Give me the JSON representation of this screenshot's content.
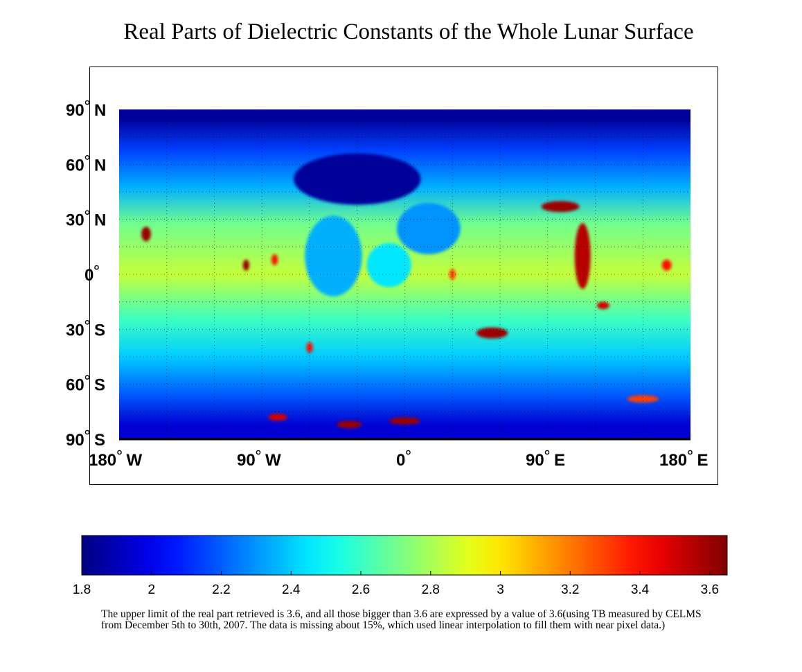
{
  "chart_data": {
    "type": "heatmap",
    "title": "Real Parts of Dielectric Constants of the Whole Lunar Surface",
    "x_ticks": [
      {
        "value": -180,
        "label": "180",
        "hemi": "W"
      },
      {
        "value": -90,
        "label": "90",
        "hemi": "W"
      },
      {
        "value": 0,
        "label": "0",
        "hemi": ""
      },
      {
        "value": 90,
        "label": "90",
        "hemi": "E"
      },
      {
        "value": 180,
        "label": "180",
        "hemi": "E"
      }
    ],
    "y_ticks": [
      {
        "value": 90,
        "label": "90",
        "hemi": "N"
      },
      {
        "value": 60,
        "label": "60",
        "hemi": "N"
      },
      {
        "value": 30,
        "label": "30",
        "hemi": "N"
      },
      {
        "value": 0,
        "label": "0",
        "hemi": ""
      },
      {
        "value": -30,
        "label": "30",
        "hemi": "S"
      },
      {
        "value": -60,
        "label": "60",
        "hemi": "S"
      },
      {
        "value": -90,
        "label": "90",
        "hemi": "S"
      }
    ],
    "xlim": [
      -180,
      180
    ],
    "ylim": [
      -90,
      90
    ],
    "grid": true,
    "colorbar": {
      "colormap": "jet",
      "range": [
        1.8,
        3.65
      ],
      "ticks": [
        "1.8",
        "2",
        "2.2",
        "2.4",
        "2.6",
        "2.8",
        "3",
        "3.2",
        "3.4",
        "3.6"
      ],
      "tick_values": [
        1.8,
        2.0,
        2.2,
        2.4,
        2.6,
        2.8,
        3.0,
        3.2,
        3.4,
        3.6
      ],
      "placement": "bottom"
    },
    "latitude_bands": [
      {
        "lat": [
          80,
          90
        ],
        "value": 1.85
      },
      {
        "lat": [
          55,
          80
        ],
        "value": 2.15
      },
      {
        "lat": [
          40,
          55
        ],
        "value": 2.35
      },
      {
        "lat": [
          15,
          40
        ],
        "value": 2.7
      },
      {
        "lat": [
          -15,
          15
        ],
        "value": 2.85
      },
      {
        "lat": [
          -35,
          -15
        ],
        "value": 2.6
      },
      {
        "lat": [
          -55,
          -35
        ],
        "value": 2.4
      },
      {
        "lat": [
          -75,
          -55
        ],
        "value": 2.2
      },
      {
        "lat": [
          -90,
          -75
        ],
        "value": 1.95
      }
    ],
    "features": [
      {
        "lon": -30,
        "lat": 52,
        "rx": 40,
        "ry": 14,
        "value": 1.85
      },
      {
        "lon": -45,
        "lat": 10,
        "rx": 18,
        "ry": 22,
        "value": 2.35
      },
      {
        "lon": 15,
        "lat": 25,
        "rx": 20,
        "ry": 14,
        "value": 2.3
      },
      {
        "lon": -10,
        "lat": 5,
        "rx": 14,
        "ry": 12,
        "value": 2.45
      },
      {
        "lon": 112,
        "lat": 10,
        "rx": 5,
        "ry": 18,
        "value": 3.55
      },
      {
        "lon": 98,
        "lat": 37,
        "rx": 12,
        "ry": 3,
        "value": 3.6
      },
      {
        "lon": 55,
        "lat": -32,
        "rx": 10,
        "ry": 3,
        "value": 3.6
      },
      {
        "lon": -163,
        "lat": 22,
        "rx": 3,
        "ry": 4,
        "value": 3.6
      },
      {
        "lon": -100,
        "lat": 5,
        "rx": 2,
        "ry": 3,
        "value": 3.6
      },
      {
        "lon": -82,
        "lat": 8,
        "rx": 2,
        "ry": 3,
        "value": 3.4
      },
      {
        "lon": -60,
        "lat": -40,
        "rx": 2,
        "ry": 3,
        "value": 3.4
      },
      {
        "lon": 30,
        "lat": 0,
        "rx": 2,
        "ry": 3,
        "value": 3.3
      },
      {
        "lon": 125,
        "lat": -17,
        "rx": 4,
        "ry": 2,
        "value": 3.5
      },
      {
        "lon": 165,
        "lat": 5,
        "rx": 3,
        "ry": 3,
        "value": 3.4
      },
      {
        "lon": -35,
        "lat": -82,
        "rx": 8,
        "ry": 2,
        "value": 3.6
      },
      {
        "lon": 0,
        "lat": -80,
        "rx": 10,
        "ry": 2,
        "value": 3.6
      },
      {
        "lon": -80,
        "lat": -78,
        "rx": 6,
        "ry": 2,
        "value": 3.5
      },
      {
        "lon": 150,
        "lat": -68,
        "rx": 10,
        "ry": 2,
        "value": 3.3
      }
    ]
  },
  "caption": "The upper limit of the real part retrieved is 3.6, and all those bigger than 3.6 are expressed by a value of 3.6(using TB measured by CELMS from December 5th to 30th, 2007. The data is missing about 15%, which used linear interpolation to fill them with near pixel data.)"
}
